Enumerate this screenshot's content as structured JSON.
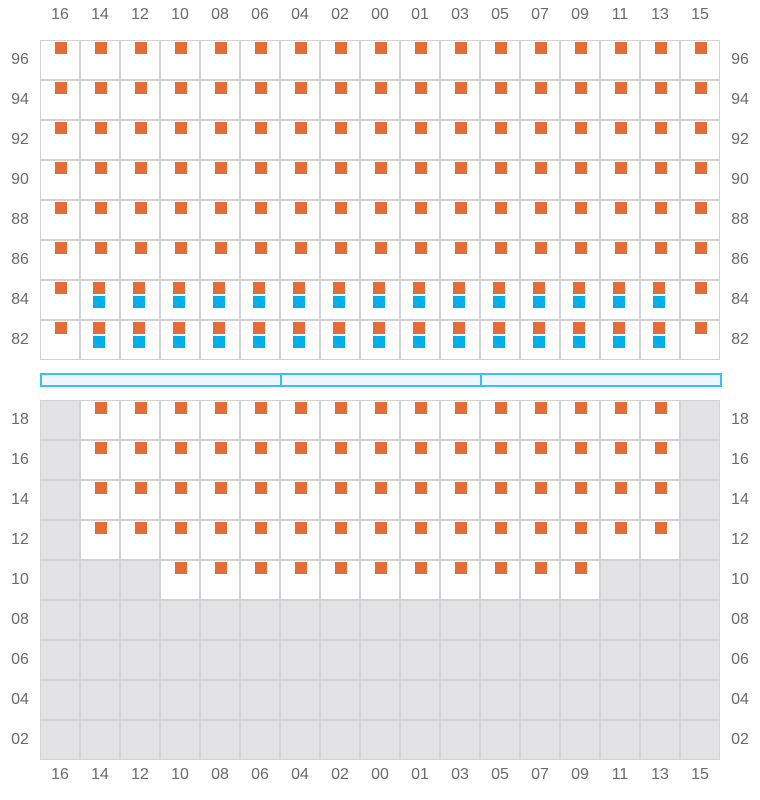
{
  "columns": [
    "16",
    "14",
    "12",
    "10",
    "08",
    "06",
    "04",
    "02",
    "00",
    "01",
    "03",
    "05",
    "07",
    "09",
    "11",
    "13",
    "15"
  ],
  "colors": {
    "orange": "#e36c37",
    "blue": "#00aeea",
    "unavailable": "#e3e3e5",
    "bar": "#3dbdf0"
  },
  "legend_codes": {
    "o": "orange marker",
    "ob": "orange and blue markers",
    "x": "unavailable",
    "": "empty"
  },
  "top_grid": {
    "rows": [
      {
        "label": "96",
        "cells": [
          "o",
          "o",
          "o",
          "o",
          "o",
          "o",
          "o",
          "o",
          "o",
          "o",
          "o",
          "o",
          "o",
          "o",
          "o",
          "o",
          "o"
        ]
      },
      {
        "label": "94",
        "cells": [
          "o",
          "o",
          "o",
          "o",
          "o",
          "o",
          "o",
          "o",
          "o",
          "o",
          "o",
          "o",
          "o",
          "o",
          "o",
          "o",
          "o"
        ]
      },
      {
        "label": "92",
        "cells": [
          "o",
          "o",
          "o",
          "o",
          "o",
          "o",
          "o",
          "o",
          "o",
          "o",
          "o",
          "o",
          "o",
          "o",
          "o",
          "o",
          "o"
        ]
      },
      {
        "label": "90",
        "cells": [
          "o",
          "o",
          "o",
          "o",
          "o",
          "o",
          "o",
          "o",
          "o",
          "o",
          "o",
          "o",
          "o",
          "o",
          "o",
          "o",
          "o"
        ]
      },
      {
        "label": "88",
        "cells": [
          "o",
          "o",
          "o",
          "o",
          "o",
          "o",
          "o",
          "o",
          "o",
          "o",
          "o",
          "o",
          "o",
          "o",
          "o",
          "o",
          "o"
        ]
      },
      {
        "label": "86",
        "cells": [
          "o",
          "o",
          "o",
          "o",
          "o",
          "o",
          "o",
          "o",
          "o",
          "o",
          "o",
          "o",
          "o",
          "o",
          "o",
          "o",
          "o"
        ]
      },
      {
        "label": "84",
        "cells": [
          "o",
          "ob",
          "ob",
          "ob",
          "ob",
          "ob",
          "ob",
          "ob",
          "ob",
          "ob",
          "ob",
          "ob",
          "ob",
          "ob",
          "ob",
          "ob",
          "o"
        ]
      },
      {
        "label": "82",
        "cells": [
          "o",
          "ob",
          "ob",
          "ob",
          "ob",
          "ob",
          "ob",
          "ob",
          "ob",
          "ob",
          "ob",
          "ob",
          "ob",
          "ob",
          "ob",
          "ob",
          "o"
        ]
      }
    ]
  },
  "divider_segments": 3,
  "bottom_grid": {
    "rows": [
      {
        "label": "18",
        "cells": [
          "x",
          "o",
          "o",
          "o",
          "o",
          "o",
          "o",
          "o",
          "o",
          "o",
          "o",
          "o",
          "o",
          "o",
          "o",
          "o",
          "x"
        ]
      },
      {
        "label": "16",
        "cells": [
          "x",
          "o",
          "o",
          "o",
          "o",
          "o",
          "o",
          "o",
          "o",
          "o",
          "o",
          "o",
          "o",
          "o",
          "o",
          "o",
          "x"
        ]
      },
      {
        "label": "14",
        "cells": [
          "x",
          "o",
          "o",
          "o",
          "o",
          "o",
          "o",
          "o",
          "o",
          "o",
          "o",
          "o",
          "o",
          "o",
          "o",
          "o",
          "x"
        ]
      },
      {
        "label": "12",
        "cells": [
          "x",
          "o",
          "o",
          "o",
          "o",
          "o",
          "o",
          "o",
          "o",
          "o",
          "o",
          "o",
          "o",
          "o",
          "o",
          "o",
          "x"
        ]
      },
      {
        "label": "10",
        "cells": [
          "x",
          "x",
          "x",
          "o",
          "o",
          "o",
          "o",
          "o",
          "o",
          "o",
          "o",
          "o",
          "o",
          "o",
          "x",
          "x",
          "x"
        ]
      },
      {
        "label": "08",
        "cells": [
          "x",
          "x",
          "x",
          "x",
          "x",
          "x",
          "x",
          "x",
          "x",
          "x",
          "x",
          "x",
          "x",
          "x",
          "x",
          "x",
          "x"
        ]
      },
      {
        "label": "06",
        "cells": [
          "x",
          "x",
          "x",
          "x",
          "x",
          "x",
          "x",
          "x",
          "x",
          "x",
          "x",
          "x",
          "x",
          "x",
          "x",
          "x",
          "x"
        ]
      },
      {
        "label": "04",
        "cells": [
          "x",
          "x",
          "x",
          "x",
          "x",
          "x",
          "x",
          "x",
          "x",
          "x",
          "x",
          "x",
          "x",
          "x",
          "x",
          "x",
          "x"
        ]
      },
      {
        "label": "02",
        "cells": [
          "x",
          "x",
          "x",
          "x",
          "x",
          "x",
          "x",
          "x",
          "x",
          "x",
          "x",
          "x",
          "x",
          "x",
          "x",
          "x",
          "x"
        ]
      }
    ]
  }
}
